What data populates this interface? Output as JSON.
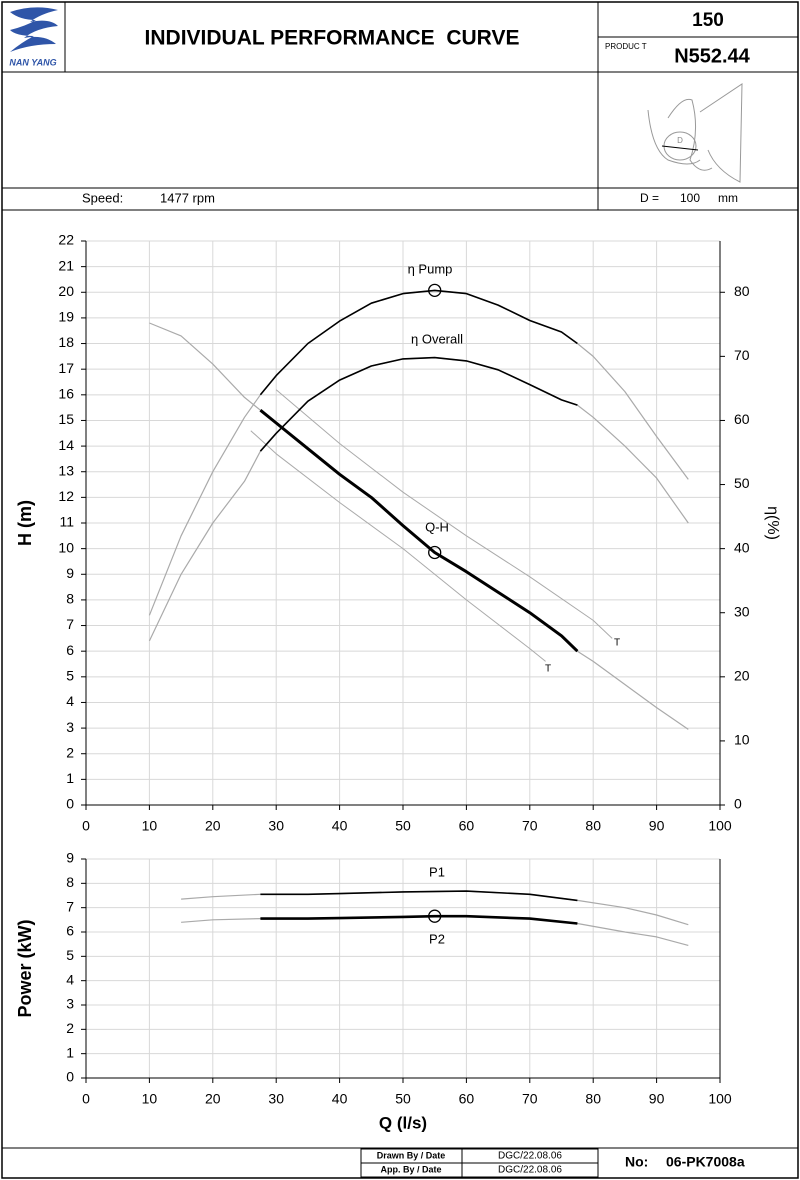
{
  "header": {
    "logo": "NAN YANG",
    "title": "INDIVIDUAL PERFORMANCE  CURVE",
    "size": "150",
    "product_label": "PRODUC T",
    "product": "N552.44",
    "speed_label": "Speed:",
    "speed": "1477 rpm",
    "impeller_label": "D",
    "diameter_label": "D =",
    "diameter": "100",
    "diameter_unit": "mm"
  },
  "footer": {
    "drawn_label": "Drawn By / Date",
    "drawn": "DGC/22.08.06",
    "approved_label": "App. By / Date",
    "approved": "DGC/22.08.06",
    "number_label": "No:",
    "number": "06-PK7008a"
  },
  "chart_data": [
    {
      "type": "line",
      "ylabel": "H (m)",
      "y2label": "η(%)",
      "xlim": [
        0,
        100
      ],
      "xticks": [
        0,
        10,
        20,
        30,
        40,
        50,
        60,
        70,
        80,
        90,
        100
      ],
      "ylim": [
        0,
        22
      ],
      "yticks": [
        0,
        1,
        2,
        3,
        4,
        5,
        6,
        7,
        8,
        9,
        10,
        11,
        12,
        13,
        14,
        15,
        16,
        17,
        18,
        19,
        20,
        21,
        22
      ],
      "y2lim": [
        0,
        88
      ],
      "y2ticks": [
        0,
        10,
        20,
        30,
        40,
        50,
        60,
        70,
        80
      ],
      "grid": true,
      "series": [
        {
          "color": "#aaaaaa",
          "line_width": 1.2,
          "x": [
            10,
            15,
            20,
            25,
            27.5,
            30,
            35,
            40,
            45,
            50,
            55,
            60,
            65,
            70,
            75,
            77.5,
            80,
            85,
            90,
            95
          ],
          "values": [
            18.8,
            18.3,
            17.2,
            15.9,
            15.4,
            14.9,
            13.9,
            12.9,
            12.0,
            10.9,
            9.85,
            9.1,
            8.3,
            7.5,
            6.6,
            6.0,
            5.6,
            4.7,
            3.8,
            2.95
          ]
        },
        {
          "name": "Q-H",
          "color": "#000000",
          "line_width": 3,
          "x": [
            27.5,
            30,
            35,
            40,
            45,
            50,
            55,
            60,
            65,
            70,
            75,
            77.5
          ],
          "values": [
            15.4,
            14.9,
            13.9,
            12.9,
            12.0,
            10.9,
            9.85,
            9.1,
            8.3,
            7.5,
            6.6,
            6.0
          ]
        },
        {
          "name": "T",
          "color": "#aaaaaa",
          "line_width": 1,
          "x": [
            30,
            40,
            50,
            60,
            70,
            80,
            83
          ],
          "values": [
            16.2,
            14.1,
            12.2,
            10.5,
            8.9,
            7.2,
            6.5
          ]
        },
        {
          "name": "T",
          "color": "#aaaaaa",
          "line_width": 1,
          "x": [
            26,
            30,
            40,
            50,
            60,
            70,
            72.5
          ],
          "values": [
            14.6,
            13.7,
            11.8,
            10.0,
            8.0,
            6.1,
            5.6
          ]
        },
        {
          "axis": "y2",
          "color": "#aaaaaa",
          "line_width": 1.2,
          "x": [
            10,
            15,
            20,
            25,
            27.5,
            30,
            35,
            40,
            45,
            50,
            55,
            60,
            65,
            70,
            75,
            77.5,
            80,
            85,
            90,
            95
          ],
          "values": [
            29.6,
            42,
            52,
            60.5,
            64,
            67,
            72,
            75.5,
            78.3,
            79.8,
            80.3,
            79.8,
            78,
            75.6,
            73.8,
            72,
            70,
            64.5,
            57.5,
            50.8
          ]
        },
        {
          "name": "η Pump",
          "axis": "y2",
          "color": "#000000",
          "line_width": 1.6,
          "x": [
            27.5,
            30,
            35,
            40,
            45,
            50,
            55,
            60,
            65,
            70,
            75,
            77.5
          ],
          "values": [
            64,
            67,
            72,
            75.5,
            78.3,
            79.8,
            80.3,
            79.8,
            78,
            75.6,
            73.8,
            72
          ]
        },
        {
          "axis": "y2",
          "color": "#aaaaaa",
          "line_width": 1.2,
          "x": [
            10,
            15,
            20,
            25,
            27.5,
            30,
            35,
            40,
            45,
            50,
            55,
            60,
            65,
            70,
            75,
            77.5,
            80,
            85,
            90,
            95
          ],
          "values": [
            25.6,
            36,
            44,
            50.5,
            55.2,
            58,
            63,
            66.3,
            68.5,
            69.6,
            69.8,
            69.3,
            67.9,
            65.6,
            63.2,
            62.4,
            60.5,
            56,
            51,
            44
          ]
        },
        {
          "name": "η Overall",
          "axis": "y2",
          "color": "#000000",
          "line_width": 1.6,
          "x": [
            27.5,
            30,
            35,
            40,
            45,
            50,
            55,
            60,
            65,
            70,
            75,
            77.5
          ],
          "values": [
            55.2,
            58,
            63,
            66.3,
            68.5,
            69.6,
            69.8,
            69.3,
            67.9,
            65.6,
            63.2,
            62.4
          ]
        },
        {
          "marker": "circle",
          "color": "#000000",
          "x": [
            55
          ],
          "values": [
            9.85
          ]
        },
        {
          "marker": "circle",
          "axis": "y2",
          "color": "#000000",
          "x": [
            55
          ],
          "values": [
            80.3
          ]
        }
      ]
    },
    {
      "type": "line",
      "xlabel": "Q (l/s)",
      "ylabel": "Power (kW)",
      "xlim": [
        0,
        100
      ],
      "xticks": [
        0,
        10,
        20,
        30,
        40,
        50,
        60,
        70,
        80,
        90,
        100
      ],
      "ylim": [
        0,
        9
      ],
      "yticks": [
        0,
        1,
        2,
        3,
        4,
        5,
        6,
        7,
        8,
        9
      ],
      "grid": true,
      "series": [
        {
          "color": "#aaaaaa",
          "line_width": 1.2,
          "x": [
            15,
            20,
            27.5,
            35,
            40,
            50,
            60,
            70,
            77.5,
            85,
            90,
            95
          ],
          "values": [
            7.35,
            7.45,
            7.55,
            7.55,
            7.58,
            7.65,
            7.68,
            7.55,
            7.3,
            7.0,
            6.7,
            6.3
          ]
        },
        {
          "name": "P1",
          "color": "#000000",
          "line_width": 1.6,
          "x": [
            27.5,
            35,
            40,
            50,
            60,
            70,
            77.5
          ],
          "values": [
            7.55,
            7.55,
            7.58,
            7.65,
            7.68,
            7.55,
            7.3
          ]
        },
        {
          "color": "#aaaaaa",
          "line_width": 1.2,
          "x": [
            15,
            20,
            27.5,
            35,
            40,
            50,
            55,
            60,
            70,
            77.5,
            85,
            90,
            95
          ],
          "values": [
            6.4,
            6.5,
            6.55,
            6.55,
            6.57,
            6.62,
            6.65,
            6.65,
            6.55,
            6.35,
            6.0,
            5.8,
            5.45
          ]
        },
        {
          "name": "P2",
          "color": "#000000",
          "line_width": 2.6,
          "x": [
            27.5,
            35,
            40,
            50,
            55,
            60,
            70,
            77.5
          ],
          "values": [
            6.55,
            6.55,
            6.57,
            6.62,
            6.65,
            6.65,
            6.55,
            6.35
          ]
        },
        {
          "marker": "circle",
          "color": "#000000",
          "x": [
            55
          ],
          "values": [
            6.65
          ]
        }
      ]
    }
  ]
}
